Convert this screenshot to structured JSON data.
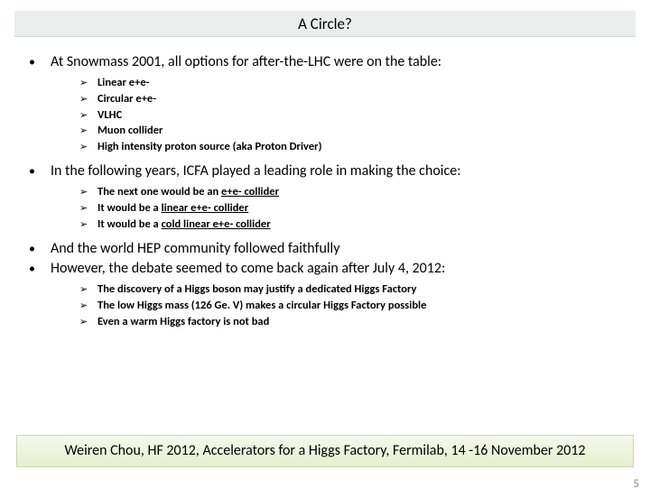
{
  "title": "A Circle?",
  "bullets": [
    {
      "text": "At Snowmass 2001, all options for after-the-LHC were on the table:",
      "subs": [
        {
          "html": "Linear e+e-"
        },
        {
          "html": "Circular e+e-"
        },
        {
          "html": "VLHC"
        },
        {
          "html": "Muon collider"
        },
        {
          "html": "High intensity proton source (aka Proton Driver)"
        }
      ]
    },
    {
      "text": "In the following years, ICFA played a leading role in making the choice:",
      "subs": [
        {
          "html": "The next one would be an <span class=\"u\">e+e- collider</span>"
        },
        {
          "html": "It would be a <span class=\"u\">linear e+e- collider</span>"
        },
        {
          "html": "It would be a <span class=\"u\">cold linear e+e- collider</span>"
        }
      ]
    },
    {
      "text": "And the world HEP community followed faithfully",
      "subs": []
    },
    {
      "text": "However, the debate seemed to come back again after July 4, 2012:",
      "subs": [
        {
          "html": "The discovery of a Higgs boson may justify a dedicated Higgs Factory"
        },
        {
          "html": "The low Higgs mass (126 Ge. V) makes a circular Higgs Factory possible"
        },
        {
          "html": "Even a warm Higgs factory is not bad"
        }
      ]
    }
  ],
  "footer": "Weiren Chou, HF 2012, Accelerators for a Higgs Factory, Fermilab, 14 -16 November 2012",
  "pageNumber": "5",
  "glyphs": {
    "mainBullet": "•",
    "subBullet": "➢"
  }
}
